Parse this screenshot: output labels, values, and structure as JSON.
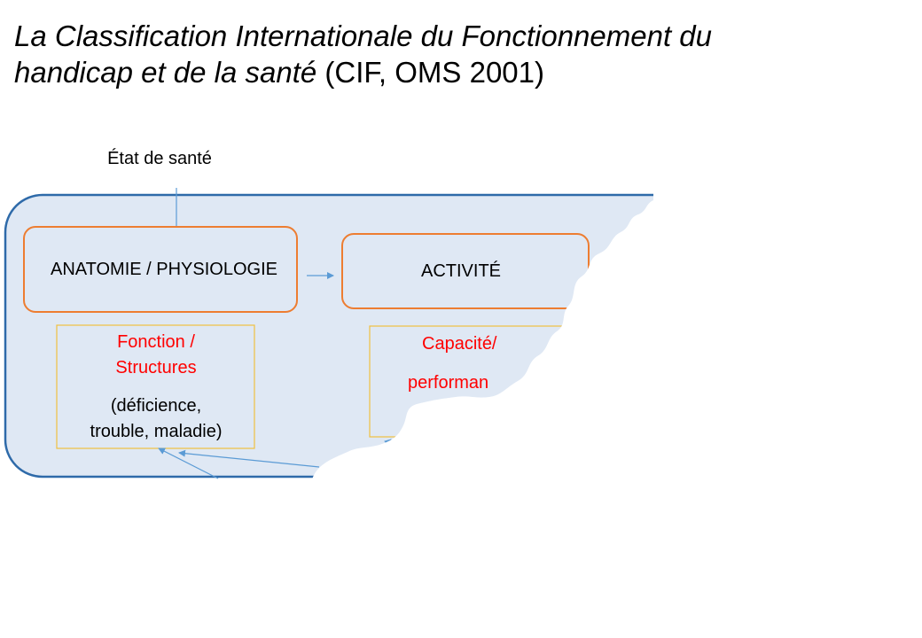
{
  "title": {
    "italic_line1": "La Classification Internationale du Fonctionnement du",
    "italic_line2": "handicap et de la santé",
    "suffix": " (CIF, OMS 2001)"
  },
  "diagram": {
    "health_state": "État de santé",
    "box_anatomy": "ANATOMIE / PHYSIOLOGIE",
    "box_activity": "ACTIVITÉ",
    "sub_function": {
      "red_line1": "Fonction /",
      "red_line2": "Structures",
      "black_line1": "(déficience,",
      "black_line2": "trouble, maladie)"
    },
    "sub_capacity": {
      "red_line1": "Capacité/",
      "red_line2": "performan"
    }
  },
  "colors": {
    "panel_fill": "#dfe8f4",
    "panel_border": "#2e6aa9",
    "box_border": "#ed7d31",
    "sub_border": "#f0c040",
    "arrow": "#5b9bd5",
    "red_text": "#ff0000"
  }
}
